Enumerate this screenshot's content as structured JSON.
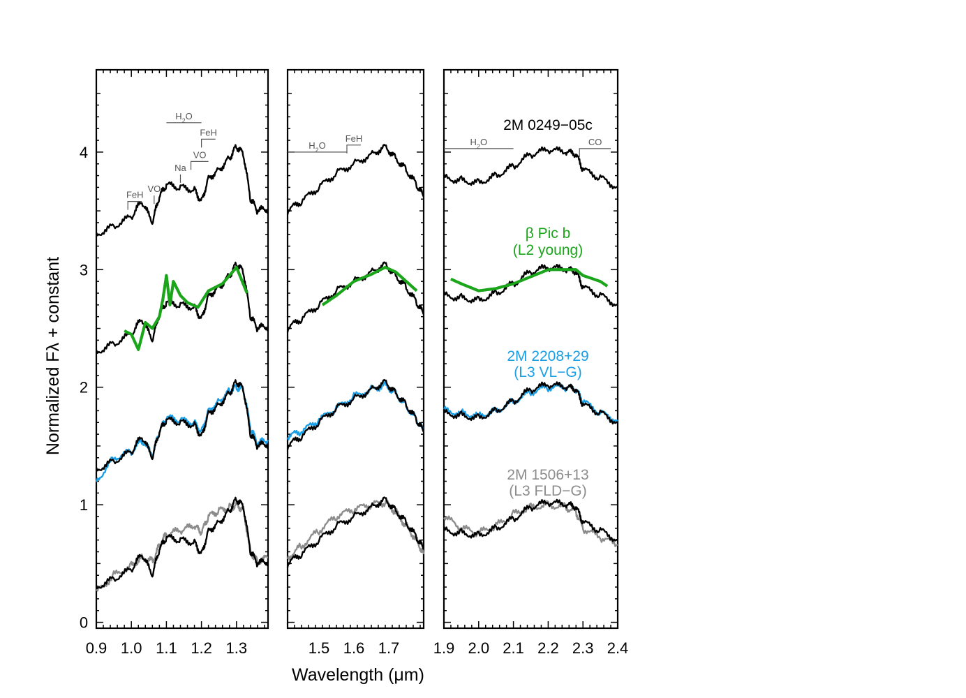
{
  "chart_data": {
    "type": "line",
    "xlabel": "Wavelength (μm)",
    "ylabel": "Normalized Fλ + constant",
    "ylim": [
      -0.05,
      4.7
    ],
    "yticks": [
      "0",
      "1",
      "2",
      "3",
      "4"
    ],
    "panels": [
      {
        "xlim": [
          0.9,
          1.39
        ],
        "xticks": [
          "0.9",
          "1.0",
          "1.1",
          "1.2",
          "1.3"
        ]
      },
      {
        "xlim": [
          1.41,
          1.8
        ],
        "xticks": [
          "1.5",
          "1.6",
          "1.7"
        ]
      },
      {
        "xlim": [
          1.9,
          2.4
        ],
        "xticks": [
          "1.9",
          "2.0",
          "2.1",
          "2.2",
          "2.3",
          "2.4"
        ]
      }
    ],
    "target": {
      "name": "2M 0249−05c",
      "color": "#000000",
      "offsets": [
        3,
        2,
        1,
        0
      ],
      "J_band": {
        "x": [
          0.9,
          0.95,
          1.0,
          1.03,
          1.06,
          1.08,
          1.1,
          1.14,
          1.18,
          1.2,
          1.22,
          1.25,
          1.28,
          1.3,
          1.32,
          1.34,
          1.36,
          1.39
        ],
        "y": [
          0.3,
          0.37,
          0.45,
          0.58,
          0.4,
          0.62,
          0.72,
          0.7,
          0.68,
          0.58,
          0.78,
          0.85,
          0.95,
          1.05,
          0.98,
          0.6,
          0.5,
          0.52
        ]
      },
      "H_band": {
        "x": [
          1.41,
          1.45,
          1.5,
          1.55,
          1.6,
          1.65,
          1.69,
          1.72,
          1.75,
          1.78,
          1.8
        ],
        "y": [
          0.5,
          0.58,
          0.7,
          0.82,
          0.9,
          0.98,
          1.05,
          0.95,
          0.85,
          0.72,
          0.62
        ]
      },
      "K_band": {
        "x": [
          1.9,
          1.95,
          2.0,
          2.05,
          2.1,
          2.15,
          2.2,
          2.25,
          2.28,
          2.3,
          2.35,
          2.4
        ],
        "y": [
          0.78,
          0.76,
          0.74,
          0.8,
          0.88,
          0.98,
          1.02,
          1.0,
          0.98,
          0.85,
          0.78,
          0.7
        ]
      }
    },
    "comparisons": [
      {
        "name": "β Pic b",
        "label2": "(L2 young)",
        "color": "#1aa51a",
        "offset": 2,
        "J_band": {
          "x": [
            0.98,
            1.0,
            1.02,
            1.04,
            1.06,
            1.08,
            1.09,
            1.1,
            1.11,
            1.12,
            1.14,
            1.16,
            1.19,
            1.22,
            1.26,
            1.3,
            1.33
          ],
          "y": [
            0.48,
            0.45,
            0.32,
            0.55,
            0.5,
            0.6,
            0.75,
            0.95,
            0.7,
            0.9,
            0.78,
            0.72,
            0.68,
            0.82,
            0.88,
            1.02,
            0.8
          ]
        },
        "H_band": {
          "x": [
            1.51,
            1.55,
            1.6,
            1.65,
            1.69,
            1.72,
            1.75,
            1.78
          ],
          "y": [
            0.7,
            0.78,
            0.9,
            0.96,
            1.02,
            0.98,
            0.9,
            0.82
          ]
        },
        "K_band": {
          "x": [
            1.92,
            1.95,
            2.0,
            2.05,
            2.1,
            2.15,
            2.2,
            2.25,
            2.28,
            2.3,
            2.35,
            2.37
          ],
          "y": [
            0.92,
            0.88,
            0.82,
            0.84,
            0.88,
            0.94,
            1.0,
            1.0,
            1.0,
            0.95,
            0.9,
            0.86
          ]
        }
      },
      {
        "name": "2M 2208+29",
        "label2": "(L3 VL−G)",
        "color": "#1a9ee6",
        "offset": 1,
        "J_band": {
          "x": [
            0.9,
            0.95,
            1.0,
            1.03,
            1.06,
            1.08,
            1.1,
            1.14,
            1.18,
            1.2,
            1.22,
            1.25,
            1.28,
            1.3,
            1.32,
            1.34,
            1.36,
            1.39
          ],
          "y": [
            0.2,
            0.4,
            0.45,
            0.55,
            0.42,
            0.62,
            0.74,
            0.72,
            0.7,
            0.62,
            0.8,
            0.88,
            0.97,
            1.0,
            0.98,
            0.65,
            0.52,
            0.55
          ]
        },
        "H_band": {
          "x": [
            1.41,
            1.45,
            1.5,
            1.55,
            1.6,
            1.65,
            1.69,
            1.72,
            1.75,
            1.78,
            1.8
          ],
          "y": [
            0.58,
            0.62,
            0.72,
            0.82,
            0.92,
            0.98,
            1.02,
            0.95,
            0.84,
            0.72,
            0.62
          ]
        },
        "K_band": {
          "x": [
            1.9,
            1.95,
            2.0,
            2.05,
            2.1,
            2.15,
            2.2,
            2.25,
            2.28,
            2.3,
            2.35,
            2.4
          ],
          "y": [
            0.8,
            0.78,
            0.76,
            0.8,
            0.88,
            0.96,
            1.0,
            1.0,
            0.98,
            0.88,
            0.78,
            0.72
          ]
        }
      },
      {
        "name": "2M 1506+13",
        "label2": "(L3 FLD−G)",
        "color": "#8c8c8c",
        "offset": 0,
        "J_band": {
          "x": [
            0.9,
            0.95,
            1.0,
            1.03,
            1.06,
            1.08,
            1.1,
            1.14,
            1.18,
            1.2,
            1.22,
            1.25,
            1.28,
            1.3,
            1.32,
            1.34,
            1.36,
            1.39
          ],
          "y": [
            0.25,
            0.4,
            0.48,
            0.55,
            0.52,
            0.65,
            0.75,
            0.78,
            0.82,
            0.76,
            0.9,
            0.95,
            0.98,
            1.0,
            0.96,
            0.6,
            0.52,
            0.55
          ]
        },
        "H_band": {
          "x": [
            1.41,
            1.45,
            1.5,
            1.55,
            1.6,
            1.65,
            1.69,
            1.72,
            1.75,
            1.78,
            1.8
          ],
          "y": [
            0.55,
            0.65,
            0.78,
            0.9,
            0.96,
            1.0,
            1.02,
            0.94,
            0.82,
            0.7,
            0.58
          ]
        },
        "K_band": {
          "x": [
            1.9,
            1.95,
            2.0,
            2.05,
            2.1,
            2.15,
            2.2,
            2.25,
            2.28,
            2.3,
            2.35,
            2.4
          ],
          "y": [
            0.9,
            0.8,
            0.76,
            0.82,
            0.92,
            0.98,
            1.0,
            0.98,
            0.94,
            0.8,
            0.72,
            0.66
          ]
        }
      }
    ],
    "features": [
      {
        "panel": 0,
        "label": "FeH",
        "type": "bracket",
        "x1": 0.99,
        "x2": 1.03,
        "y": 3.58
      },
      {
        "panel": 0,
        "label": "VO",
        "type": "tick",
        "x1": 1.065,
        "y": 3.63
      },
      {
        "panel": 0,
        "label": "Na",
        "type": "tick",
        "x1": 1.14,
        "y": 3.81
      },
      {
        "panel": 0,
        "label": "VO",
        "type": "bracket",
        "x1": 1.17,
        "x2": 1.22,
        "y": 3.92
      },
      {
        "panel": 0,
        "label": "FeH",
        "type": "bracket",
        "x1": 1.2,
        "x2": 1.24,
        "y": 4.11
      },
      {
        "panel": 0,
        "label": "H2O",
        "type": "line",
        "x1": 1.1,
        "x2": 1.2,
        "y": 4.25
      },
      {
        "panel": 1,
        "label": "H2O",
        "type": "line",
        "x1": 1.41,
        "x2": 1.58,
        "y": 4.0
      },
      {
        "panel": 1,
        "label": "FeH",
        "type": "bracket",
        "x1": 1.58,
        "x2": 1.62,
        "y": 4.06
      },
      {
        "panel": 2,
        "label": "H2O",
        "type": "line",
        "x1": 1.9,
        "x2": 2.1,
        "y": 4.03
      },
      {
        "panel": 2,
        "label": "CO",
        "type": "bracket",
        "x1": 2.29,
        "x2": 2.38,
        "y": 4.03
      }
    ]
  }
}
